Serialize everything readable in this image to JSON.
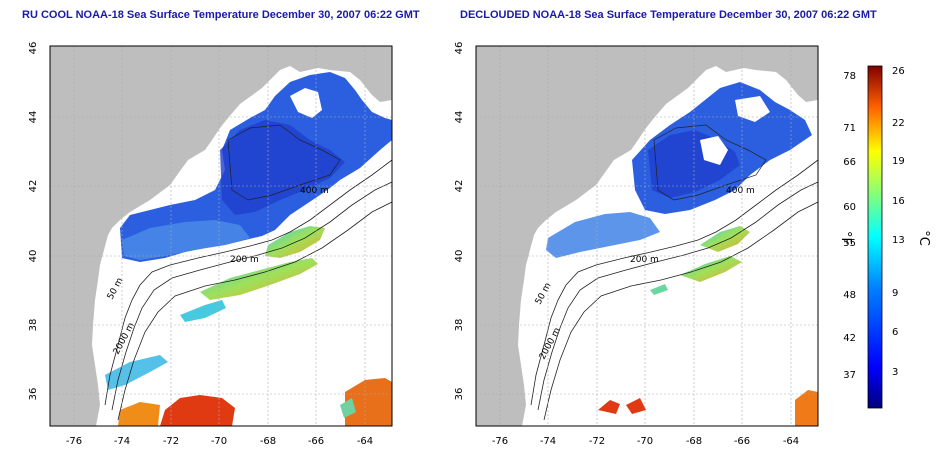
{
  "titles": {
    "left": "RU COOL NOAA-18 Sea Surface Temperature December 30, 2007 06:22 GMT",
    "right": "DECLOUDED NOAA-18 Sea Surface Temperature December 30, 2007 06:22 GMT"
  },
  "axes": {
    "x_ticks": [
      "-76",
      "-74",
      "-72",
      "-70",
      "-68",
      "-66",
      "-64"
    ],
    "y_ticks": [
      "46",
      "44",
      "42",
      "40",
      "38",
      "36"
    ]
  },
  "contour_labels": [
    "200 m",
    "400 m",
    "200 m",
    "50 m",
    "50 m",
    "2000 m"
  ],
  "colorbar": {
    "fahrenheit_label": "°F",
    "celsius_label": "°C",
    "fahrenheit_ticks": [
      "78",
      "71",
      "66",
      "60",
      "55",
      "48",
      "42",
      "37"
    ],
    "celsius_ticks": [
      "26",
      "22",
      "19",
      "16",
      "13",
      "9",
      "6",
      "3"
    ]
  },
  "colors": {
    "land": "#bebebe",
    "shelf_cold": "#2255dd",
    "warm": "#e83a10",
    "title": "#1a1aa6"
  }
}
